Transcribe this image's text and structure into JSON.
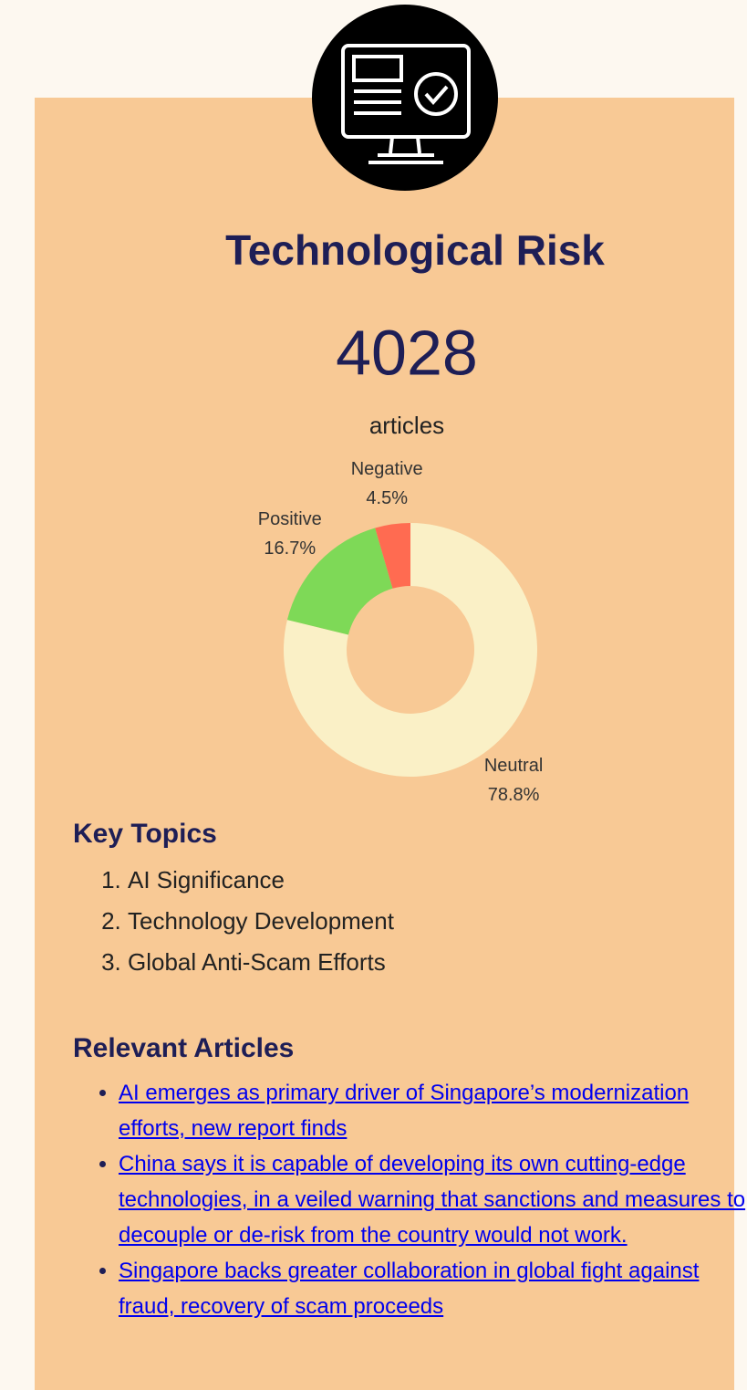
{
  "header": {
    "title": "Technological Risk",
    "count": "4028",
    "count_unit": "articles"
  },
  "chart_data": {
    "type": "pie",
    "categories": [
      "Neutral",
      "Positive",
      "Negative"
    ],
    "values": [
      78.8,
      16.7,
      4.5
    ],
    "value_labels": [
      "78.8%",
      "16.7%",
      "4.5%"
    ],
    "colors": [
      "#faf0c6",
      "#7ed957",
      "#ff6b51"
    ],
    "donut": true,
    "direction": "clockwise"
  },
  "key_topics": {
    "title": "Key Topics",
    "items": [
      "AI Significance",
      "Technology Development",
      "Global Anti-Scam Efforts"
    ]
  },
  "articles": {
    "title": "Relevant Articles",
    "items": [
      "AI emerges as primary driver of Singapore’s modernization efforts, new report finds",
      "China says it is capable of developing its own cutting-edge technologies, in a veiled warning that sanctions and measures to decouple or de-risk from the country would not work.",
      "Singapore backs greater collaboration in global fight against fraud, recovery of scam proceeds"
    ]
  }
}
